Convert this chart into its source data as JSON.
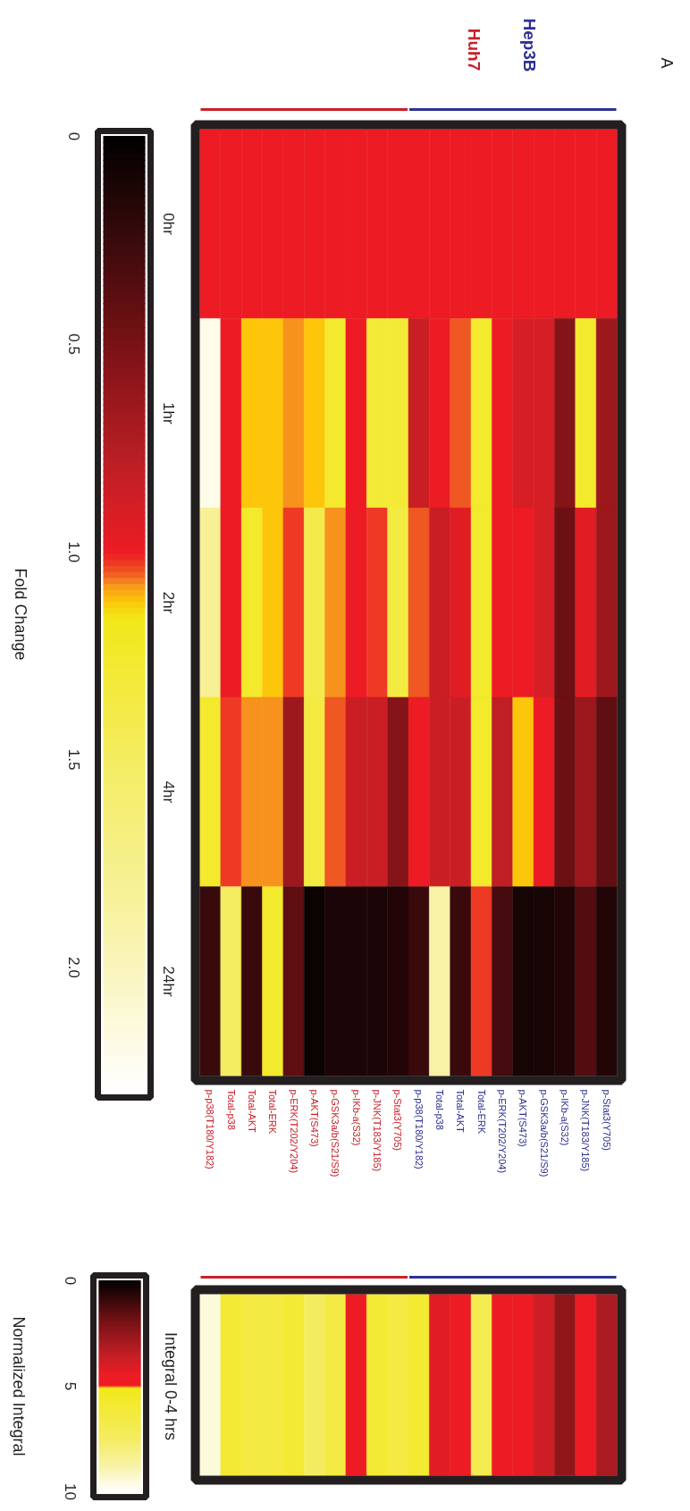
{
  "chart_data": [
    {
      "type": "heatmap",
      "categories": [
        "p-p38(T180/Y182)",
        "Total-p38",
        "Total-AKT",
        "Total-ERK",
        "p-ERK(T202/Y204)",
        "p-AKT(S473)",
        "p-GSK3a/b(S21/S9)",
        "p-IKb-a(S32)",
        "p-JNK(T183/Y185)",
        "p-Stat3(Y705)",
        "p-p38(T180/Y182)",
        "Total-p38",
        "Total-AKT",
        "Total-ERK",
        "p-ERK(T202/Y204)",
        "p-AKT(S473)",
        "p-GSK3a/b(S21/S9)",
        "p-IKb-a(S32)",
        "p-JNK(T183/Y185)",
        "p-Stat3(Y705)"
      ],
      "y_categories": [
        "0hr",
        "1hr",
        "2hr",
        "4hr",
        "24hr"
      ],
      "cells": [
        [
          1.0,
          1.0,
          1.0,
          1.0,
          1.0,
          1.0,
          1.0,
          1.0,
          1.0,
          1.0,
          1.0,
          1.0,
          1.0,
          1.0,
          1.0,
          1.0,
          1.0,
          1.0,
          1.0,
          1.0
        ],
        [
          2.2,
          1.0,
          1.12,
          1.12,
          1.08,
          1.12,
          1.25,
          1.0,
          1.3,
          1.3,
          0.85,
          1.0,
          1.05,
          1.25,
          1.0,
          0.9,
          0.9,
          0.55,
          1.25,
          0.65
        ],
        [
          1.8,
          1.0,
          1.25,
          1.12,
          1.03,
          1.4,
          1.08,
          1.0,
          1.03,
          1.35,
          1.05,
          0.85,
          0.95,
          1.25,
          1.0,
          1.0,
          0.9,
          0.45,
          0.95,
          0.65
        ],
        [
          1.25,
          1.03,
          1.08,
          1.08,
          0.65,
          1.35,
          1.05,
          0.85,
          0.85,
          0.55,
          1.0,
          0.85,
          0.85,
          1.25,
          0.8,
          1.12,
          1.0,
          0.45,
          0.65,
          0.4
        ],
        [
          0.25,
          1.5,
          0.25,
          1.25,
          0.4,
          0.05,
          0.12,
          0.12,
          0.12,
          0.15,
          0.25,
          1.9,
          0.25,
          1.03,
          0.3,
          0.1,
          0.1,
          0.15,
          0.35,
          0.15
        ]
      ],
      "clim": [
        0,
        2.3
      ],
      "cticks": [
        0,
        0.5,
        {
          "value": 1.0,
          "label": "1.0"
        },
        1.5,
        {
          "value": 2.0,
          "label": "2.0"
        }
      ],
      "clabel": "Fold Change",
      "annotations": [
        "Huh7",
        "Hep3B",
        "A"
      ]
    },
    {
      "type": "heatmap",
      "title": "Integral 0-4 hrs",
      "categories": [
        null,
        null,
        null,
        null,
        null,
        null,
        null,
        null,
        null,
        null,
        null,
        null,
        null,
        null,
        null,
        null,
        null,
        null,
        null,
        null
      ],
      "y_categories": [
        null
      ],
      "cells": [
        [
          9.5,
          6,
          6.5,
          6.5,
          6,
          7.5,
          6.5,
          4.5,
          6,
          6.5,
          6,
          4.2,
          4.5,
          7,
          4.5,
          4.5,
          3.8,
          2.5,
          4.5,
          3
        ]
      ],
      "clim": [
        0,
        10
      ],
      "cticks": [
        0,
        5,
        10
      ],
      "clabel": "Normalized Integral"
    }
  ]
}
